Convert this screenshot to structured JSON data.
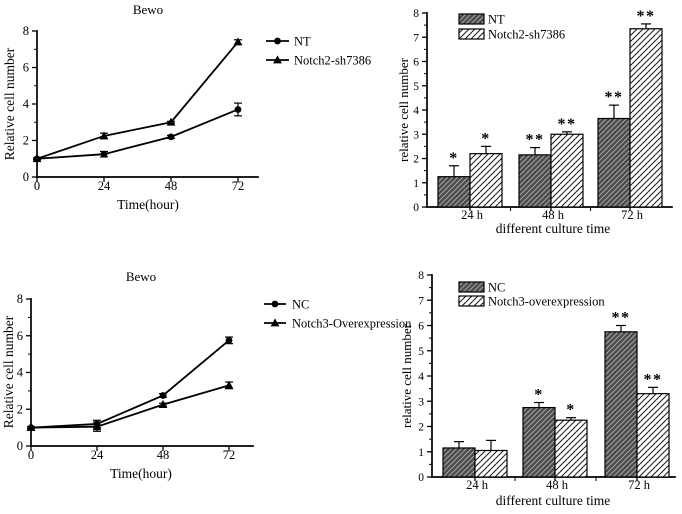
{
  "colors": {
    "ink": "#000000",
    "background": "#ffffff",
    "bar_dark_fill": "#4b4b4b",
    "bar_dark_stripe": "#a6a6a6",
    "bar_light_fill": "#ffffff",
    "bar_light_stripe": "#1a1a1a"
  },
  "chart_data": [
    {
      "id": "bewo-notch2-line",
      "type": "line",
      "title": "Bewo",
      "xlabel": "Time(hour)",
      "ylabel": "Relative cell number",
      "x": [
        0,
        24,
        48,
        72
      ],
      "xlim": [
        0,
        80
      ],
      "ylim": [
        0,
        8
      ],
      "yticks": [
        0,
        2,
        4,
        6,
        8
      ],
      "grid": false,
      "legend_position": "right-of-plot",
      "series": [
        {
          "name": "NT",
          "marker": "circle",
          "values": [
            1.0,
            1.25,
            2.2,
            3.7
          ],
          "errors": [
            0.05,
            0.15,
            0.08,
            0.35
          ]
        },
        {
          "name": "Notch2-sh7386",
          "marker": "triangle",
          "values": [
            1.0,
            2.25,
            3.0,
            7.4
          ],
          "errors": [
            0.05,
            0.15,
            0.05,
            0.12
          ]
        }
      ]
    },
    {
      "id": "notch2-bar",
      "type": "bar",
      "title": "",
      "xlabel": "different culture time",
      "ylabel": "relative cell number",
      "categories": [
        "24 h",
        "48 h",
        "72 h"
      ],
      "ylim": [
        0,
        8
      ],
      "yticks": [
        0,
        1,
        2,
        3,
        4,
        5,
        6,
        7,
        8
      ],
      "grid": false,
      "legend_position": "top-left-inside",
      "series": [
        {
          "name": "NT",
          "pattern": "dark-hatch",
          "values": [
            1.25,
            2.15,
            3.65
          ],
          "errors": [
            0.45,
            0.3,
            0.55
          ],
          "significance": [
            "*",
            "**",
            "**"
          ]
        },
        {
          "name": "Notch2-sh7386",
          "pattern": "light-hatch",
          "values": [
            2.2,
            3.0,
            7.35
          ],
          "errors": [
            0.3,
            0.1,
            0.2
          ],
          "significance": [
            "*",
            "**",
            "**"
          ]
        }
      ]
    },
    {
      "id": "bewo-notch3-line",
      "type": "line",
      "title": "Bewo",
      "xlabel": "Time(hour)",
      "ylabel": "Relative cell number",
      "x": [
        0,
        24,
        48,
        72
      ],
      "xlim": [
        0,
        80
      ],
      "ylim": [
        0,
        8
      ],
      "yticks": [
        0,
        2,
        4,
        6,
        8
      ],
      "grid": false,
      "legend_position": "right-of-plot",
      "series": [
        {
          "name": "NC",
          "marker": "circle",
          "values": [
            1.0,
            1.2,
            2.75,
            5.75
          ],
          "errors": [
            0.05,
            0.2,
            0.1,
            0.18
          ]
        },
        {
          "name": "Notch3-Overexpression",
          "marker": "triangle",
          "values": [
            1.0,
            1.05,
            2.25,
            3.3
          ],
          "errors": [
            0.05,
            0.25,
            0.08,
            0.18
          ]
        }
      ]
    },
    {
      "id": "notch3-bar",
      "type": "bar",
      "title": "",
      "xlabel": "different culture time",
      "ylabel": "relative cell number",
      "categories": [
        "24 h",
        "48 h",
        "72 h"
      ],
      "ylim": [
        0,
        8
      ],
      "yticks": [
        0,
        1,
        2,
        3,
        4,
        5,
        6,
        7,
        8
      ],
      "grid": false,
      "legend_position": "top-left-inside",
      "series": [
        {
          "name": "NC",
          "pattern": "dark-hatch",
          "values": [
            1.15,
            2.75,
            5.75
          ],
          "errors": [
            0.25,
            0.2,
            0.25
          ],
          "significance": [
            "",
            "*",
            "**"
          ]
        },
        {
          "name": "Notch3-overexpression",
          "pattern": "light-hatch",
          "values": [
            1.05,
            2.25,
            3.3
          ],
          "errors": [
            0.4,
            0.1,
            0.25
          ],
          "significance": [
            "",
            "*",
            "**"
          ]
        }
      ]
    }
  ]
}
